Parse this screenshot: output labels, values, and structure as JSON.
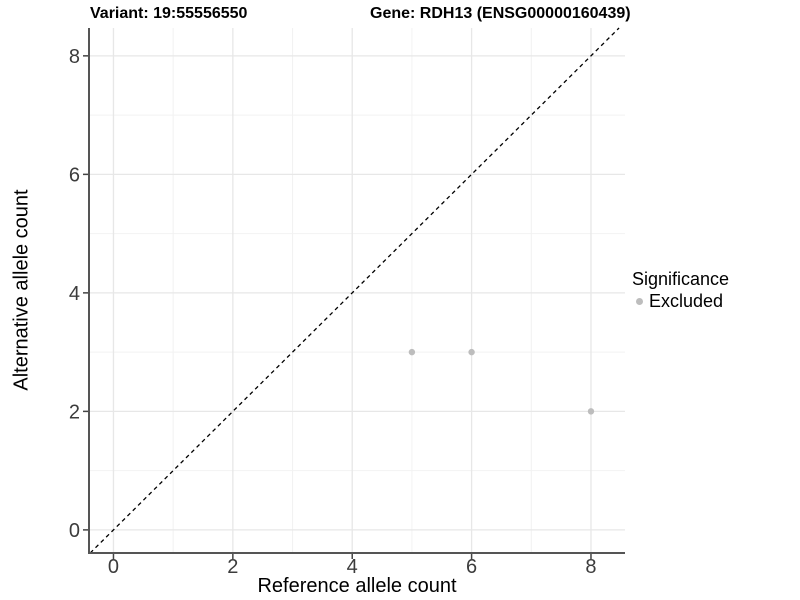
{
  "titles": {
    "variant": "Variant: 19:55556550",
    "gene": "Gene: RDH13 (ENSG00000160439)"
  },
  "chart_data": {
    "type": "scatter",
    "xlabel": "Reference allele count",
    "ylabel": "Alternative allele count",
    "xlim": [
      -0.41,
      8.57
    ],
    "ylim": [
      -0.39,
      8.47
    ],
    "x_ticks": [
      0,
      2,
      4,
      6,
      8
    ],
    "y_ticks": [
      0,
      2,
      4,
      6,
      8
    ],
    "x_minor_gridlines": [
      1,
      3,
      5,
      7
    ],
    "y_minor_gridlines": [
      1,
      3,
      5,
      7
    ],
    "grid": "on",
    "series": [
      {
        "name": "Excluded",
        "color": "#bdbdbd",
        "points": [
          [
            5,
            3
          ],
          [
            6,
            3
          ],
          [
            8,
            2
          ]
        ]
      }
    ],
    "reference_line": {
      "type": "identity y=x",
      "style": "dashed",
      "color": "#000000"
    },
    "legend": {
      "position": "right",
      "title": "Significance",
      "items": [
        {
          "label": "Excluded",
          "color": "#bdbdbd"
        }
      ]
    },
    "colors": {
      "grid_major": "#e7e7e7",
      "grid_minor": "#f2f2f2",
      "axis_line": "#555555",
      "tick_mark": "#444444",
      "tick_text": "#3c3c3c"
    }
  }
}
